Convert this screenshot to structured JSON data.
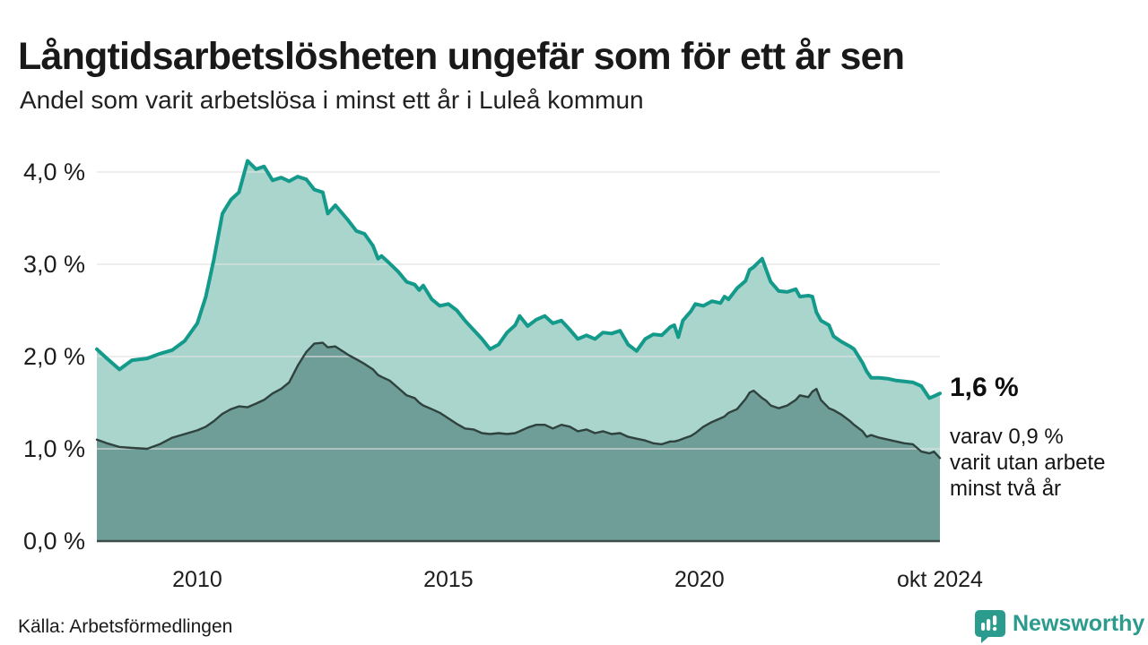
{
  "header": {
    "title": "Långtidsarbetslösheten ungefär som för ett år sen",
    "subtitle": "Andel som varit arbetslösa i minst ett år i Luleå kommun"
  },
  "chart_data": {
    "type": "area",
    "title": "Långtidsarbetslösheten ungefär som för ett år sen",
    "subtitle": "Andel som varit arbetslösa i minst ett år i Luleå kommun",
    "x_domain": [
      2008.0,
      2024.79
    ],
    "ylim": [
      0,
      4.3
    ],
    "grid": true,
    "grid_color": "#e2e2e2",
    "baseline_color": "#3e4d49",
    "x": [
      2008.0,
      2008.2,
      2008.45,
      2008.7,
      2009.0,
      2009.25,
      2009.5,
      2009.75,
      2010.0,
      2010.17,
      2010.33,
      2010.5,
      2010.67,
      2010.83,
      2011.0,
      2011.17,
      2011.33,
      2011.5,
      2011.67,
      2011.83,
      2012.0,
      2012.17,
      2012.33,
      2012.5,
      2012.6,
      2012.75,
      2013.0,
      2013.17,
      2013.33,
      2013.5,
      2013.6,
      2013.67,
      2013.83,
      2014.0,
      2014.17,
      2014.33,
      2014.42,
      2014.5,
      2014.67,
      2014.83,
      2015.0,
      2015.17,
      2015.33,
      2015.5,
      2015.67,
      2015.83,
      2016.0,
      2016.17,
      2016.33,
      2016.42,
      2016.58,
      2016.75,
      2016.92,
      2017.08,
      2017.25,
      2017.42,
      2017.58,
      2017.75,
      2017.92,
      2018.08,
      2018.25,
      2018.42,
      2018.58,
      2018.75,
      2018.92,
      2019.08,
      2019.25,
      2019.42,
      2019.5,
      2019.58,
      2019.67,
      2019.83,
      2019.92,
      2020.08,
      2020.25,
      2020.42,
      2020.5,
      2020.58,
      2020.75,
      2020.92,
      2021.0,
      2021.08,
      2021.25,
      2021.33,
      2021.42,
      2021.58,
      2021.75,
      2021.92,
      2022.0,
      2022.17,
      2022.25,
      2022.33,
      2022.42,
      2022.58,
      2022.67,
      2022.83,
      2023.0,
      2023.08,
      2023.25,
      2023.33,
      2023.42,
      2023.58,
      2023.75,
      2023.92,
      2024.08,
      2024.25,
      2024.42,
      2024.58,
      2024.67,
      2024.79
    ],
    "series": [
      {
        "name": "minst ett år",
        "line_color": "#139a8b",
        "fill_color": "#a9d5cd",
        "line_width": 4,
        "values": [
          2.08,
          1.98,
          1.86,
          1.96,
          1.98,
          2.03,
          2.07,
          2.17,
          2.36,
          2.65,
          3.05,
          3.55,
          3.7,
          3.78,
          4.12,
          4.03,
          4.06,
          3.91,
          3.94,
          3.9,
          3.95,
          3.92,
          3.81,
          3.78,
          3.55,
          3.64,
          3.48,
          3.36,
          3.33,
          3.2,
          3.06,
          3.09,
          3.01,
          2.92,
          2.81,
          2.78,
          2.72,
          2.77,
          2.62,
          2.55,
          2.57,
          2.5,
          2.39,
          2.29,
          2.19,
          2.08,
          2.13,
          2.26,
          2.34,
          2.44,
          2.33,
          2.4,
          2.44,
          2.36,
          2.39,
          2.29,
          2.19,
          2.23,
          2.19,
          2.26,
          2.25,
          2.28,
          2.13,
          2.06,
          2.19,
          2.24,
          2.23,
          2.32,
          2.34,
          2.21,
          2.39,
          2.49,
          2.57,
          2.55,
          2.6,
          2.58,
          2.65,
          2.62,
          2.74,
          2.82,
          2.94,
          2.97,
          3.06,
          2.94,
          2.81,
          2.71,
          2.7,
          2.73,
          2.65,
          2.66,
          2.65,
          2.48,
          2.39,
          2.34,
          2.22,
          2.16,
          2.11,
          2.08,
          1.93,
          1.84,
          1.77,
          1.77,
          1.76,
          1.74,
          1.73,
          1.72,
          1.68,
          1.55,
          1.57,
          1.6
        ]
      },
      {
        "name": "minst två år",
        "line_color": "#2f423e",
        "fill_color": "#6f9d97",
        "line_width": 2.4,
        "values": [
          1.1,
          1.06,
          1.02,
          1.01,
          1.0,
          1.05,
          1.12,
          1.16,
          1.2,
          1.24,
          1.3,
          1.38,
          1.43,
          1.46,
          1.45,
          1.49,
          1.53,
          1.6,
          1.65,
          1.72,
          1.9,
          2.05,
          2.14,
          2.15,
          2.1,
          2.11,
          2.02,
          1.97,
          1.92,
          1.86,
          1.8,
          1.78,
          1.74,
          1.66,
          1.58,
          1.55,
          1.5,
          1.47,
          1.43,
          1.39,
          1.33,
          1.27,
          1.22,
          1.21,
          1.17,
          1.16,
          1.17,
          1.16,
          1.17,
          1.19,
          1.23,
          1.26,
          1.26,
          1.22,
          1.26,
          1.24,
          1.19,
          1.21,
          1.17,
          1.19,
          1.16,
          1.17,
          1.13,
          1.11,
          1.09,
          1.06,
          1.05,
          1.08,
          1.08,
          1.09,
          1.11,
          1.14,
          1.17,
          1.24,
          1.29,
          1.33,
          1.35,
          1.39,
          1.43,
          1.54,
          1.61,
          1.63,
          1.55,
          1.52,
          1.47,
          1.44,
          1.47,
          1.53,
          1.58,
          1.56,
          1.62,
          1.65,
          1.53,
          1.44,
          1.42,
          1.37,
          1.3,
          1.26,
          1.19,
          1.13,
          1.15,
          1.12,
          1.1,
          1.08,
          1.06,
          1.05,
          0.97,
          0.95,
          0.97,
          0.9
        ]
      }
    ],
    "y_ticks": [
      {
        "value": 0,
        "label": "0,0 %"
      },
      {
        "value": 1,
        "label": "1,0 %"
      },
      {
        "value": 2,
        "label": "2,0 %"
      },
      {
        "value": 3,
        "label": "3,0 %"
      },
      {
        "value": 4,
        "label": "4,0 %"
      }
    ],
    "x_ticks": [
      {
        "x": 2010,
        "label": "2010"
      },
      {
        "x": 2015,
        "label": "2015"
      },
      {
        "x": 2020,
        "label": "2020"
      },
      {
        "x": 2024.79,
        "label": "okt 2024"
      }
    ],
    "annotation": {
      "value_label": "1,6 %",
      "detail_lines": [
        "varav 0,9 %",
        "varit utan arbete",
        "minst två år"
      ]
    }
  },
  "footer": {
    "source": "Källa: Arbetsförmedlingen",
    "logo_text": "Newsworthy",
    "logo_color": "#2b9b8e"
  }
}
